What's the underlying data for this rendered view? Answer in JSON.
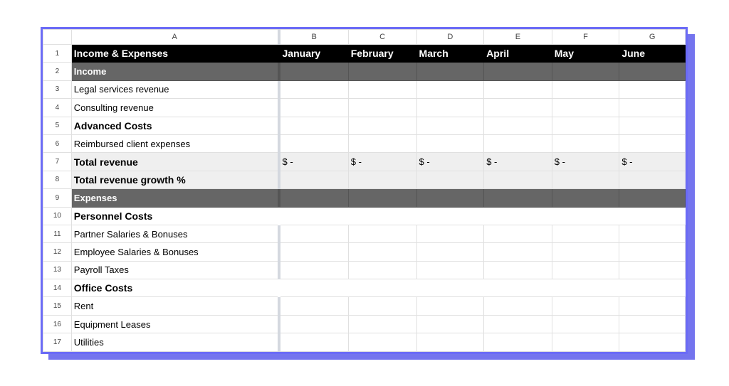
{
  "columns": [
    "A",
    "B",
    "C",
    "D",
    "E",
    "F",
    "G"
  ],
  "header": {
    "title": "Income & Expenses",
    "months": [
      "January",
      "February",
      "March",
      "April",
      "May",
      "June"
    ]
  },
  "rows": [
    {
      "n": "1",
      "label": "Income & Expenses",
      "type": "title"
    },
    {
      "n": "2",
      "label": "Income",
      "type": "section"
    },
    {
      "n": "3",
      "label": "Legal services revenue",
      "type": "normal"
    },
    {
      "n": "4",
      "label": "Consulting revenue",
      "type": "normal"
    },
    {
      "n": "5",
      "label": "Advanced Costs",
      "type": "bold"
    },
    {
      "n": "6",
      "label": "Reimbursed client expenses",
      "type": "normal"
    },
    {
      "n": "7",
      "label": "Total revenue",
      "type": "total",
      "values": [
        "$ -",
        "$ -",
        "$ -",
        "$ -",
        "$ -",
        "$ -"
      ]
    },
    {
      "n": "8",
      "label": "Total revenue growth %",
      "type": "total"
    },
    {
      "n": "9",
      "label": "Expenses",
      "type": "section"
    },
    {
      "n": "10",
      "label": "Personnel Costs",
      "type": "boldnogrid"
    },
    {
      "n": "11",
      "label": "Partner Salaries & Bonuses",
      "type": "normal"
    },
    {
      "n": "12",
      "label": "Employee Salaries & Bonuses",
      "type": "normal"
    },
    {
      "n": "13",
      "label": "Payroll Taxes",
      "type": "normal"
    },
    {
      "n": "14",
      "label": "Office Costs",
      "type": "boldnogrid"
    },
    {
      "n": "15",
      "label": "Rent",
      "type": "normal"
    },
    {
      "n": "16",
      "label": "Equipment Leases",
      "type": "normal"
    },
    {
      "n": "17",
      "label": "Utilities",
      "type": "normal"
    }
  ],
  "colors": {
    "frame": "#6b6bf6",
    "section": "#666666",
    "title": "#000000"
  }
}
